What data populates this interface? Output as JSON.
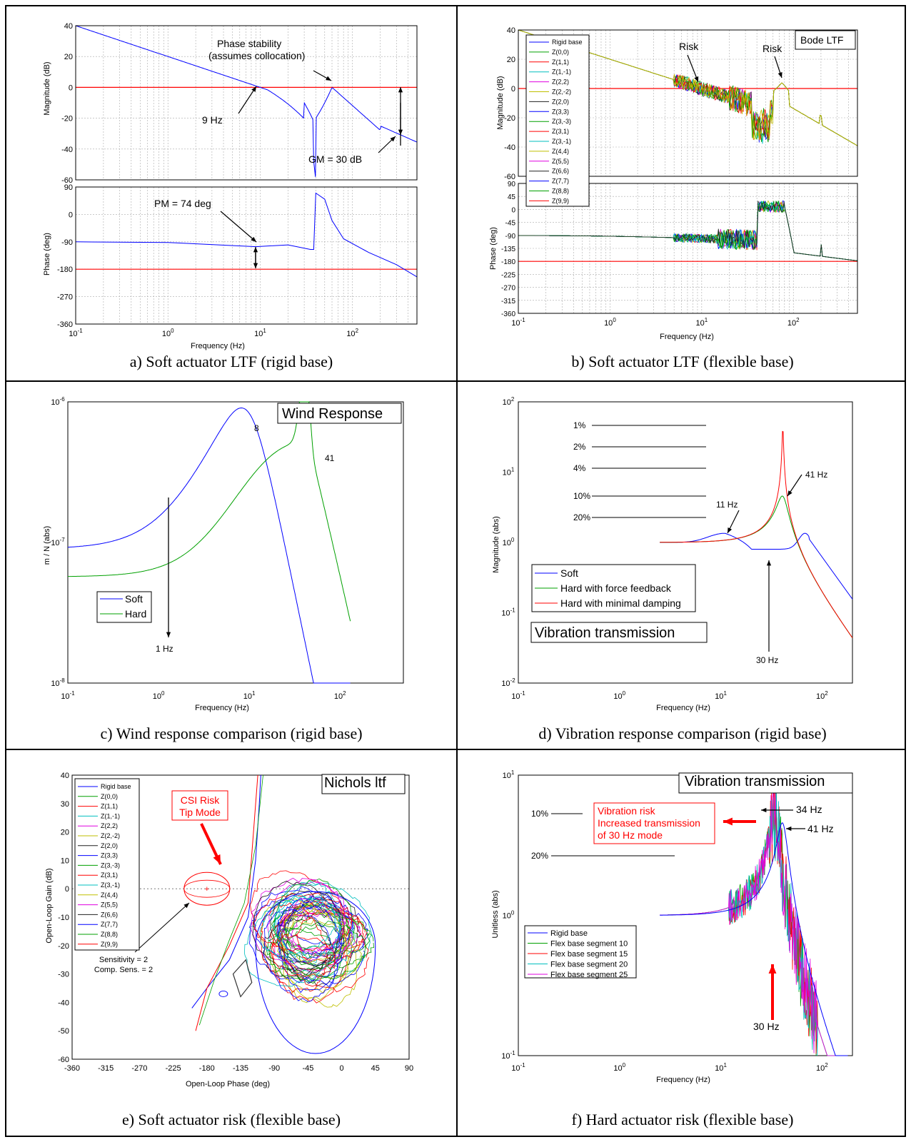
{
  "panels": {
    "a": {
      "caption": "a) Soft actuator LTF (rigid base)",
      "xlabel": "Frequency  (Hz)",
      "mag": {
        "ylabel": "Magnitude (dB)",
        "ylim": [
          -60,
          40
        ],
        "yticks": [
          "40",
          "20",
          "0",
          "-20",
          "-40",
          "-60"
        ]
      },
      "phase": {
        "ylabel": "Phase (deg)",
        "ylim": [
          -360,
          90
        ],
        "yticks": [
          "90",
          "0",
          "-90",
          "-180",
          "-270",
          "-360"
        ]
      },
      "xticks": [
        {
          "b": "10",
          "e": "-1"
        },
        {
          "b": "10",
          "e": "0"
        },
        {
          "b": "10",
          "e": "1"
        },
        {
          "b": "10",
          "e": "2"
        }
      ],
      "annotations": {
        "phase_stability": "Phase stability",
        "collocation": "(assumes collocation)",
        "nine_hz": "9 Hz",
        "gm": "GM = 30 dB",
        "pm": "PM = 74 deg"
      }
    },
    "b": {
      "caption": "b) Soft actuator LTF (flexible base)",
      "xlabel": "Frequency  (Hz)",
      "title": "Bode LTF",
      "mag": {
        "ylabel": "Magnitude (dB)",
        "yticks": [
          "40",
          "20",
          "0",
          "-20",
          "-40",
          "-60"
        ]
      },
      "phase": {
        "ylabel": "Phase (deg)",
        "yticks": [
          "90",
          "45",
          "0",
          "-45",
          "-90",
          "-135",
          "-180",
          "-225",
          "-270",
          "-315",
          "-360"
        ]
      },
      "xticks": [
        {
          "b": "10",
          "e": "-1"
        },
        {
          "b": "10",
          "e": "0"
        },
        {
          "b": "10",
          "e": "1"
        },
        {
          "b": "10",
          "e": "2"
        }
      ],
      "risk1": "Risk",
      "risk2": "Risk",
      "legend": [
        "Rigid base",
        "Z(0,0)",
        "Z(1,1)",
        "Z(1,-1)",
        "Z(2,2)",
        "Z(2,-2)",
        "Z(2,0)",
        "Z(3,3)",
        "Z(3,-3)",
        "Z(3,1)",
        "Z(3,-1)",
        "Z(4,4)",
        "Z(5,5)",
        "Z(6,6)",
        "Z(7,7)",
        "Z(8,8)",
        "Z(9,9)"
      ]
    },
    "c": {
      "caption": "c) Wind response comparison (rigid base)",
      "xlabel": "Frequency  (Hz)",
      "ylabel": "m / N (abs)",
      "title": "Wind Response",
      "yticks": [
        {
          "b": "10",
          "e": "-6"
        },
        {
          "b": "10",
          "e": "-7"
        },
        {
          "b": "10",
          "e": "-8"
        }
      ],
      "xticks": [
        {
          "b": "10",
          "e": "-1"
        },
        {
          "b": "10",
          "e": "0"
        },
        {
          "b": "10",
          "e": "1"
        },
        {
          "b": "10",
          "e": "2"
        }
      ],
      "legend": [
        "Soft",
        "Hard"
      ],
      "peak_soft": "8",
      "peak_hard": "41",
      "one_hz": "1 Hz"
    },
    "d": {
      "caption": "d) Vibration response comparison (rigid base)",
      "xlabel": "Frequency  (Hz)",
      "ylabel": "Magnitude (abs)",
      "title": "Vibration transmission",
      "yticks": [
        {
          "b": "10",
          "e": "2"
        },
        {
          "b": "10",
          "e": "1"
        },
        {
          "b": "10",
          "e": "0"
        },
        {
          "b": "10",
          "e": "-1"
        },
        {
          "b": "10",
          "e": "-2"
        }
      ],
      "xticks": [
        {
          "b": "10",
          "e": "-1"
        },
        {
          "b": "10",
          "e": "0"
        },
        {
          "b": "10",
          "e": "1"
        },
        {
          "b": "10",
          "e": "2"
        }
      ],
      "damping_labels": [
        "1%",
        "2%",
        "4%",
        "10%",
        "20%"
      ],
      "legend": [
        "Soft",
        "Hard with force feedback",
        "Hard with minimal damping"
      ],
      "a11": "11 Hz",
      "a41": "41 Hz",
      "a30": "30 Hz"
    },
    "e": {
      "caption": "e) Soft actuator risk (flexible base)",
      "xlabel": "Open-Loop Phase (deg)",
      "ylabel": "Open-Loop Gain (dB)",
      "title": "Nichols ltf",
      "yticks": [
        "40",
        "30",
        "20",
        "10",
        "0",
        "-10",
        "-20",
        "-30",
        "-40",
        "-50",
        "-60"
      ],
      "xticks": [
        "-360",
        "-315",
        "-270",
        "-225",
        "-180",
        "-135",
        "-90",
        "-45",
        "0",
        "45",
        "90"
      ],
      "csi1": "CSI Risk",
      "csi2": "Tip Mode",
      "sens1": "Sensitivity = 2",
      "sens2": "Comp. Sens. = 2",
      "legend": [
        "Rigid base",
        "Z(0,0)",
        "Z(1,1)",
        "Z(1,-1)",
        "Z(2,2)",
        "Z(2,-2)",
        "Z(2,0)",
        "Z(3,3)",
        "Z(3,-3)",
        "Z(3,1)",
        "Z(3,-1)",
        "Z(4,4)",
        "Z(5,5)",
        "Z(6,6)",
        "Z(7,7)",
        "Z(8,8)",
        "Z(9,9)"
      ]
    },
    "f": {
      "caption": "f) Hard actuator risk (flexible base)",
      "xlabel": "Frequency  (Hz)",
      "ylabel": "Unitless (abs)",
      "title": "Vibration transmission",
      "yticks": [
        {
          "b": "10",
          "e": "1"
        },
        {
          "b": "10",
          "e": "0"
        },
        {
          "b": "10",
          "e": "-1"
        }
      ],
      "xticks": [
        {
          "b": "10",
          "e": "-1"
        },
        {
          "b": "10",
          "e": "0"
        },
        {
          "b": "10",
          "e": "1"
        },
        {
          "b": "10",
          "e": "2"
        }
      ],
      "p10": "10%",
      "p20": "20%",
      "risk_l1": "Vibration risk",
      "risk_l2": "Increased transmission",
      "risk_l3": "of 30 Hz mode",
      "a34": "34 Hz",
      "a41": "41 Hz",
      "a30": "30 Hz",
      "legend": [
        "Rigid base",
        "Flex base segment 10",
        "Flex base segment 15",
        "Flex base segment 20",
        "Flex base segment 25"
      ]
    }
  },
  "colors": {
    "blue": "#0000ff",
    "red": "#ff0000",
    "green": "#00a000",
    "cyan": "#00bfbf",
    "magenta": "#e000e0",
    "olive": "#bfbf00",
    "black": "#202020"
  },
  "chart_data": [
    {
      "type": "line",
      "panel": "a",
      "xscale": "log",
      "xlim": [
        0.1,
        500
      ],
      "series": [
        {
          "plot": "magnitude",
          "x": [
            0.1,
            1,
            9,
            30,
            37,
            40,
            50,
            60,
            80,
            150,
            200,
            300,
            500
          ],
          "y": [
            40,
            20,
            0,
            -10,
            -25,
            -60,
            -8,
            0,
            -10,
            -22,
            -25,
            -31,
            -42
          ]
        },
        {
          "plot": "phase",
          "x": [
            0.1,
            1,
            9,
            20,
            35,
            38,
            40,
            50,
            60,
            80,
            150,
            300,
            500
          ],
          "y": [
            -90,
            -92,
            -106,
            -100,
            -115,
            -115,
            70,
            50,
            -20,
            -80,
            -125,
            -165,
            -205
          ]
        },
        {
          "plot": "magnitude-reference",
          "x": [
            0.1,
            500
          ],
          "y": [
            0,
            0
          ]
        },
        {
          "plot": "phase-reference",
          "x": [
            0.1,
            500
          ],
          "y": [
            -180,
            -180
          ]
        }
      ]
    },
    {
      "type": "line",
      "panel": "b",
      "xscale": "log",
      "xlim": [
        0.1,
        500
      ],
      "ylim_mag": [
        -60,
        40
      ],
      "ylim_phase": [
        -360,
        90
      ],
      "series": [
        {
          "name": "Rigid base",
          "plot": "magnitude",
          "x": [
            0.1,
            1,
            9,
            30,
            45,
            60,
            75,
            100,
            200,
            500
          ],
          "y": [
            40,
            20,
            0,
            -10,
            -20,
            0,
            4,
            -12,
            -25,
            -43
          ]
        },
        {
          "name": "Rigid base",
          "plot": "phase",
          "x": [
            0.1,
            1,
            9,
            20,
            40,
            45,
            60,
            80,
            100,
            200,
            500
          ],
          "y": [
            -90,
            -92,
            -100,
            -105,
            -115,
            45,
            40,
            -20,
            -150,
            -170,
            -200
          ]
        }
      ]
    },
    {
      "type": "line",
      "panel": "c",
      "xscale": "log",
      "yscale": "log",
      "xlim": [
        0.1,
        150
      ],
      "ylim": [
        1e-08,
        1e-06
      ],
      "series": [
        {
          "name": "Soft",
          "x": [
            0.1,
            0.5,
            1,
            2,
            4,
            8,
            15,
            30,
            50,
            70,
            90,
            130
          ],
          "y": [
            9e-08,
            1.1e-07,
            1.5e-07,
            2.7e-07,
            5e-07,
            7.2e-07,
            4.8e-07,
            1.2e-07,
            4.7e-08,
            5e-08,
            2.6e-08,
            1e-08
          ]
        },
        {
          "name": "Hard",
          "x": [
            0.1,
            1,
            2,
            4,
            8,
            15,
            25,
            35,
            41,
            50,
            70,
            100,
            130
          ],
          "y": [
            5.7e-08,
            5.7e-08,
            5.8e-08,
            8e-08,
            1.25e-07,
            1.45e-07,
            1.7e-07,
            2.6e-07,
            3.7e-07,
            1.2e-07,
            5e-08,
            2e-08,
            1e-08
          ]
        }
      ]
    },
    {
      "type": "line",
      "panel": "d",
      "xscale": "log",
      "yscale": "log",
      "xlim": [
        0.1,
        200
      ],
      "ylim": [
        0.01,
        100
      ],
      "series": [
        {
          "name": "Soft",
          "x": [
            2.5,
            5,
            8,
            11,
            15,
            25,
            35,
            50,
            70,
            90,
            120,
            200
          ],
          "y": [
            1,
            1.1,
            1.25,
            1.35,
            1.25,
            0.85,
            0.75,
            0.95,
            1.35,
            0.8,
            0.35,
            0.18
          ]
        },
        {
          "name": "Hard with force feedback",
          "x": [
            2.5,
            10,
            20,
            30,
            41,
            50,
            60,
            80,
            120,
            200
          ],
          "y": [
            1,
            1.05,
            1.3,
            2,
            4.5,
            2.5,
            1,
            0.5,
            0.25,
            0.14
          ]
        },
        {
          "name": "Hard with minimal damping",
          "x": [
            2.5,
            10,
            20,
            35,
            40,
            41,
            43,
            50,
            70,
            100,
            200
          ],
          "y": [
            1,
            1.03,
            1.3,
            5,
            20,
            45,
            18,
            3,
            0.8,
            0.35,
            0.14
          ]
        }
      ]
    },
    {
      "type": "line",
      "panel": "e",
      "xlim": [
        -360,
        90
      ],
      "ylim": [
        -60,
        40
      ],
      "series": [
        {
          "name": "Rigid base",
          "x": [
            -200,
            -180,
            -150,
            -125,
            -115,
            -110,
            -108
          ],
          "y": [
            -42,
            -35,
            -25,
            -10,
            10,
            30,
            40
          ]
        },
        {
          "name": "Z(1,1)",
          "x": [
            -195,
            -180,
            -150,
            -125,
            -112
          ],
          "y": [
            -50,
            -35,
            -20,
            -5,
            40
          ]
        }
      ]
    },
    {
      "type": "line",
      "panel": "f",
      "xscale": "log",
      "yscale": "log",
      "xlim": [
        0.1,
        200
      ],
      "ylim": [
        0.1,
        10
      ],
      "series": [
        {
          "name": "Rigid base",
          "x": [
            2.5,
            10,
            20,
            30,
            41,
            50,
            60,
            80,
            120,
            200
          ],
          "y": [
            1,
            1.05,
            1.3,
            2,
            4.5,
            2.5,
            1,
            0.4,
            0.2,
            0.15
          ]
        }
      ]
    }
  ]
}
